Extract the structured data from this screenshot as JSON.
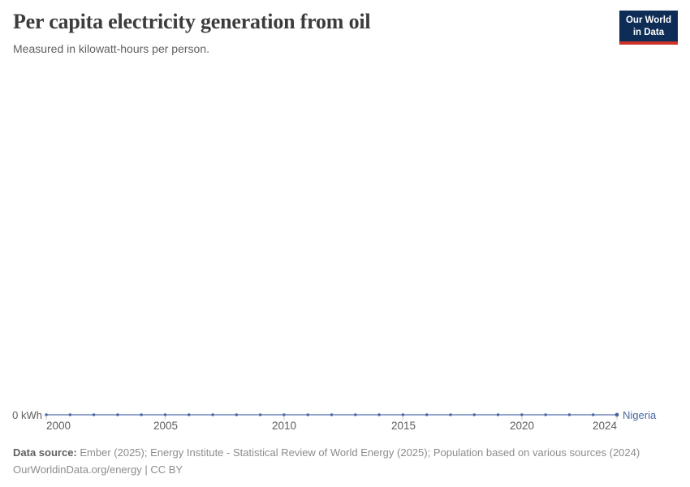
{
  "header": {
    "title": "Per capita electricity generation from oil",
    "subtitle": "Measured in kilowatt-hours per person.",
    "logo": {
      "line1": "Our World",
      "line2": "in Data"
    }
  },
  "chart_data": {
    "type": "line",
    "title": "Per capita electricity generation from oil",
    "subtitle": "Measured in kilowatt-hours per person.",
    "unit": "kilowatt-hours per person",
    "x": [
      2000,
      2001,
      2002,
      2003,
      2004,
      2005,
      2006,
      2007,
      2008,
      2009,
      2010,
      2011,
      2012,
      2013,
      2014,
      2015,
      2016,
      2017,
      2018,
      2019,
      2020,
      2021,
      2022,
      2023,
      2024
    ],
    "series": [
      {
        "name": "Nigeria",
        "color": "#4a67a0",
        "values": [
          0,
          0,
          0,
          0,
          0,
          0,
          0,
          0,
          0,
          0,
          0,
          0,
          0,
          0,
          0,
          0,
          0,
          0,
          0,
          0,
          0,
          0,
          0,
          0,
          0
        ]
      }
    ],
    "x_range": [
      2000,
      2024
    ],
    "x_ticks": [
      2000,
      2005,
      2010,
      2015,
      2020,
      2024
    ],
    "x_tick_labels": [
      "2000",
      "2005",
      "2010",
      "2015",
      "2020",
      "2024"
    ],
    "y_zero_label": "0 kWh",
    "ylim": [
      0,
      0
    ],
    "grid": false,
    "legend_position": "end-of-line-label",
    "line_color": "#6e86b6",
    "marker_color": "#4a67a0",
    "tick_color": "#c9c9c9"
  },
  "footer": {
    "data_source_label": "Data source:",
    "data_source_text": "Ember (2025); Energy Institute - Statistical Review of World Energy (2025); Population based on various sources (2024)",
    "license_line": "OurWorldinData.org/energy | CC BY"
  }
}
